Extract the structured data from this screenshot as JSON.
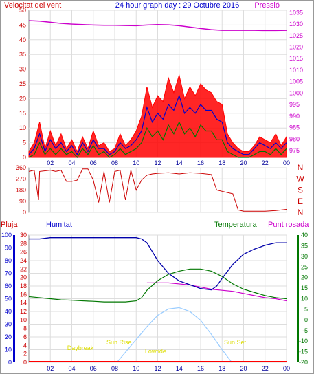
{
  "header": {
    "left_label": "Velocitat del vent",
    "center_title": "24 hour graph day : 29 Octubre 2016",
    "right_label": "Pressió"
  },
  "bottom_header": {
    "pluja": "Pluja",
    "humitat": "Humitat",
    "temperatura": "Temperatura",
    "punt_rosada": "Punt rosada"
  },
  "colors": {
    "wind_speed": "#ff0000",
    "wind_gust_area": "#ff0000",
    "wind_avg": "#0000cc",
    "wind_min": "#007700",
    "pressure": "#cc00cc",
    "direction": "#cc0000",
    "humidity": "#0000aa",
    "temperature": "#007700",
    "dewpoint": "#cc00cc",
    "solar": "#99ccff",
    "rain": "#ff0000",
    "sun_labels": "#dddd00",
    "grid": "#dddddd",
    "axis_left": "#cc0000",
    "axis_right": "#cc00cc",
    "axis_temp": "#007700",
    "axis_hum": "#0000cc",
    "title": "#0000cc"
  },
  "x_tick_labels": [
    "02",
    "04",
    "06",
    "08",
    "10",
    "12",
    "14",
    "16",
    "18",
    "20",
    "22",
    "00"
  ],
  "compass_labels": [
    "N",
    "W",
    "S",
    "E",
    "N"
  ],
  "sun_labels": {
    "daybreak": "Daybreak",
    "sunrise": "Sun Rise",
    "lowtide": "Lowtide",
    "sunset": "Sun Set"
  },
  "chart_data": [
    {
      "type": "line",
      "title": "24 hour graph day : 29 Octubre 2016",
      "ylabel": "Velocitat del vent",
      "y2label": "Pressió",
      "x_hours_ticks": [
        2,
        4,
        6,
        8,
        10,
        12,
        14,
        16,
        18,
        20,
        22,
        24
      ],
      "ylim": [
        0,
        50
      ],
      "y_ticks": [
        0,
        5,
        10,
        15,
        20,
        25,
        30,
        35,
        40,
        45,
        50
      ],
      "y2lim": [
        972,
        1036
      ],
      "y2_ticks": [
        975,
        980,
        985,
        990,
        995,
        1000,
        1005,
        1010,
        1015,
        1020,
        1025,
        1030,
        1035
      ],
      "series": [
        {
          "name": "Velocitat del vent",
          "axis": "left",
          "x": [
            0,
            0.5,
            1,
            1.5,
            2,
            2.5,
            3,
            3.5,
            4,
            4.5,
            5,
            5.5,
            6,
            6.5,
            7,
            7.5,
            8,
            8.5,
            9,
            9.5,
            10,
            10.5,
            11,
            11.5,
            12,
            12.5,
            13,
            13.5,
            14,
            14.5,
            15,
            15.5,
            16,
            16.5,
            17,
            17.5,
            18,
            18.5,
            19,
            19.5,
            20,
            20.5,
            21,
            21.5,
            22,
            22.5,
            23,
            23.5,
            24
          ],
          "values": [
            2,
            5,
            12,
            3,
            9,
            4,
            8,
            3,
            6,
            2,
            7,
            3,
            9,
            4,
            5,
            2,
            3,
            8,
            4,
            6,
            9,
            14,
            24,
            17,
            21,
            19,
            27,
            22,
            28,
            20,
            24,
            21,
            25,
            23,
            22,
            19,
            18,
            8,
            5,
            3,
            2,
            2,
            4,
            7,
            6,
            5,
            8,
            4,
            7
          ]
        },
        {
          "name": "",
          "axis": "left",
          "x": [
            0,
            0.5,
            1,
            1.5,
            2,
            2.5,
            3,
            3.5,
            4,
            4.5,
            5,
            5.5,
            6,
            6.5,
            7,
            7.5,
            8,
            8.5,
            9,
            9.5,
            10,
            10.5,
            11,
            11.5,
            12,
            12.5,
            13,
            13.5,
            14,
            14.5,
            15,
            15.5,
            16,
            16.5,
            17,
            17.5,
            18,
            18.5,
            19,
            19.5,
            20,
            20.5,
            21,
            21.5,
            22,
            22.5,
            23,
            23.5,
            24
          ],
          "values": [
            1,
            3,
            8,
            2,
            6,
            3,
            5,
            2,
            4,
            1,
            5,
            2,
            6,
            3,
            3,
            1,
            2,
            5,
            3,
            4,
            6,
            9,
            17,
            12,
            15,
            13,
            18,
            16,
            21,
            15,
            17,
            15,
            18,
            16,
            16,
            13,
            12,
            5,
            3,
            2,
            1,
            1,
            3,
            5,
            4,
            3,
            5,
            3,
            5
          ]
        },
        {
          "name": "",
          "axis": "left",
          "x": [
            0,
            0.5,
            1,
            1.5,
            2,
            2.5,
            3,
            3.5,
            4,
            4.5,
            5,
            5.5,
            6,
            6.5,
            7,
            7.5,
            8,
            8.5,
            9,
            9.5,
            10,
            10.5,
            11,
            11.5,
            12,
            12.5,
            13,
            13.5,
            14,
            14.5,
            15,
            15.5,
            16,
            16.5,
            17,
            17.5,
            18,
            18.5,
            19,
            19.5,
            20,
            20.5,
            21,
            21.5,
            22,
            22.5,
            23,
            23.5,
            24
          ],
          "values": [
            0,
            1,
            5,
            1,
            3,
            1,
            3,
            1,
            2,
            0,
            3,
            1,
            4,
            1,
            2,
            0,
            1,
            3,
            1,
            2,
            3,
            5,
            10,
            7,
            9,
            6,
            11,
            8,
            12,
            8,
            10,
            7,
            11,
            9,
            9,
            6,
            6,
            2,
            1,
            0,
            0,
            0,
            1,
            2,
            2,
            1,
            3,
            1,
            3
          ]
        },
        {
          "name": "Pressió",
          "axis": "right",
          "x": [
            0,
            1,
            2,
            3,
            4,
            5,
            6,
            7,
            8,
            9,
            10,
            11,
            12,
            13,
            14,
            15,
            16,
            17,
            18,
            19,
            20,
            21,
            22,
            23,
            24
          ],
          "values": [
            1031.5,
            1031.3,
            1030.8,
            1030.3,
            1030.0,
            1029.8,
            1029.6,
            1029.5,
            1029.5,
            1029.4,
            1029.3,
            1029.6,
            1029.8,
            1029.7,
            1029.3,
            1028.7,
            1028.1,
            1027.6,
            1027.3,
            1027.3,
            1027.3,
            1027.3,
            1027.2,
            1027.2,
            1027.3
          ]
        }
      ]
    },
    {
      "type": "line",
      "title": "",
      "y_ticks": [
        0,
        90,
        180,
        270,
        360
      ],
      "ylim": [
        0,
        360
      ],
      "series": [
        {
          "name": "",
          "x": [
            0,
            0.5,
            0.9,
            1.0,
            2.0,
            2.5,
            3.0,
            3.5,
            4.0,
            4.5,
            5.0,
            5.5,
            6.0,
            6.5,
            7.0,
            7.5,
            8.0,
            8.5,
            9.0,
            9.5,
            10.0,
            10.5,
            11.0,
            11.5,
            12.0,
            13.0,
            14.0,
            15.0,
            16.0,
            17.0,
            17.5,
            18.0,
            18.5,
            19.0,
            19.5,
            20.0,
            21.0,
            22.0,
            23.0,
            23.5,
            24
          ],
          "values": [
            330,
            340,
            100,
            330,
            340,
            330,
            340,
            250,
            250,
            260,
            350,
            350,
            260,
            80,
            330,
            80,
            330,
            340,
            100,
            340,
            180,
            260,
            300,
            310,
            315,
            320,
            310,
            320,
            315,
            305,
            180,
            170,
            160,
            150,
            20,
            10,
            10,
            10,
            15,
            20,
            25
          ]
        }
      ]
    },
    {
      "type": "line",
      "title": "",
      "ylim": [
        0,
        100
      ],
      "y_ticks": [
        0,
        10,
        20,
        30,
        40,
        50,
        60,
        70,
        80,
        90,
        100
      ],
      "pluja_ticks": [
        0,
        2,
        4,
        6,
        8,
        10,
        12,
        14,
        16,
        18,
        20,
        22,
        24,
        26,
        28,
        30
      ],
      "temp_ticks": [
        -20,
        -15,
        -10,
        -5,
        0,
        5,
        10,
        15,
        20,
        25,
        30,
        35,
        40
      ],
      "temp_lim": [
        -20,
        40
      ],
      "series": [
        {
          "name": "Humitat",
          "x": [
            0,
            1,
            2,
            3,
            4,
            5,
            6,
            7,
            8,
            9,
            10,
            10.5,
            11,
            12,
            13,
            14,
            15,
            16,
            17,
            17.5,
            18,
            19,
            20,
            21,
            22,
            23,
            24
          ],
          "values": [
            97,
            97,
            98,
            98,
            98,
            98,
            98,
            98,
            98,
            98,
            98,
            97,
            94,
            80,
            70,
            64,
            61,
            58,
            57,
            60,
            66,
            77,
            85,
            89,
            92,
            94,
            94
          ]
        },
        {
          "name": "Temperatura",
          "x": [
            0,
            1,
            2,
            3,
            4,
            5,
            6,
            7,
            8,
            9,
            10,
            10.5,
            11,
            12,
            13,
            14,
            15,
            16,
            17,
            18,
            19,
            20,
            21,
            22,
            23,
            24
          ],
          "values": [
            11.0,
            10.5,
            10.0,
            9.5,
            9.3,
            9.0,
            8.8,
            8.5,
            8.5,
            8.5,
            9.0,
            10.5,
            14.0,
            18.5,
            21.5,
            23.0,
            24.0,
            24.0,
            23.0,
            20.5,
            17.0,
            14.5,
            13.0,
            11.5,
            10.5,
            10.0
          ]
        },
        {
          "name": "Punt rosada",
          "x": [
            11,
            12,
            13,
            14,
            15,
            16,
            17,
            18,
            19,
            20,
            21,
            22,
            23,
            24
          ],
          "values": [
            17.5,
            17.5,
            17.5,
            17.0,
            16.5,
            15.5,
            14.5,
            14.0,
            13.5,
            12.5,
            11.5,
            10.5,
            10.0,
            9.0
          ]
        },
        {
          "name": "",
          "x": [
            8.2,
            9,
            10,
            11,
            12,
            13,
            14,
            15,
            16,
            17,
            18,
            18.9
          ],
          "values": [
            0,
            8,
            18,
            28,
            37,
            42,
            43,
            40,
            33,
            22,
            10,
            0
          ]
        }
      ]
    }
  ]
}
